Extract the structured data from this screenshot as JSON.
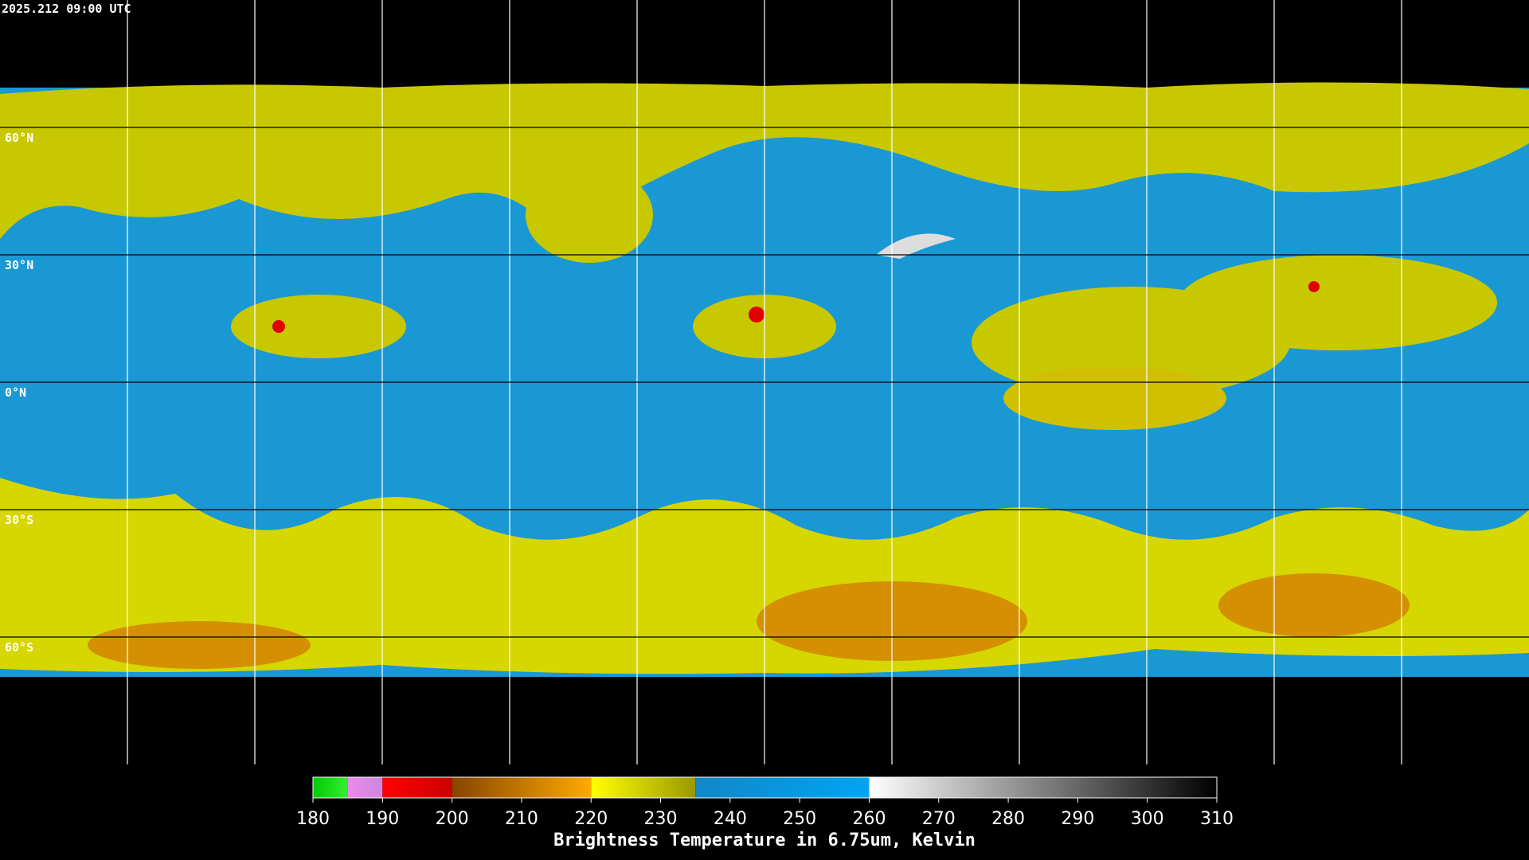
{
  "timestamp": "2025.212 09:00 UTC",
  "map": {
    "lon_range": [
      -180,
      180
    ],
    "lat_range": [
      90,
      -90
    ],
    "lat_lines": [
      {
        "value": 60,
        "label": "60°N"
      },
      {
        "value": 30,
        "label": "30°N"
      },
      {
        "value": 0,
        "label": "0°N"
      },
      {
        "value": -30,
        "label": "30°S"
      },
      {
        "value": -60,
        "label": "60°S"
      }
    ],
    "lon_lines": [
      -150,
      -120,
      -90,
      -60,
      -30,
      0,
      30,
      60,
      90,
      120,
      150
    ]
  },
  "colorbar": {
    "title": "Brightness Temperature in 6.75um, Kelvin",
    "range": [
      180,
      310
    ],
    "ticks": [
      180,
      190,
      200,
      210,
      220,
      230,
      240,
      250,
      260,
      270,
      280,
      290,
      300,
      310
    ],
    "segments": [
      {
        "from": 180,
        "to": 185,
        "colors": [
          "#00cc00",
          "#33ee33"
        ]
      },
      {
        "from": 185,
        "to": 190,
        "colors": [
          "#ee88ee",
          "#cc88dd"
        ]
      },
      {
        "from": 190,
        "to": 200,
        "colors": [
          "#ff0000",
          "#cc0000"
        ]
      },
      {
        "from": 200,
        "to": 220,
        "colors": [
          "#884400",
          "#ffaa00"
        ]
      },
      {
        "from": 220,
        "to": 235,
        "colors": [
          "#ffff00",
          "#999900"
        ]
      },
      {
        "from": 235,
        "to": 260,
        "colors": [
          "#1088c8",
          "#00a4f4"
        ]
      },
      {
        "from": 260,
        "to": 310,
        "colors": [
          "#ffffff",
          "#000000"
        ]
      }
    ]
  }
}
